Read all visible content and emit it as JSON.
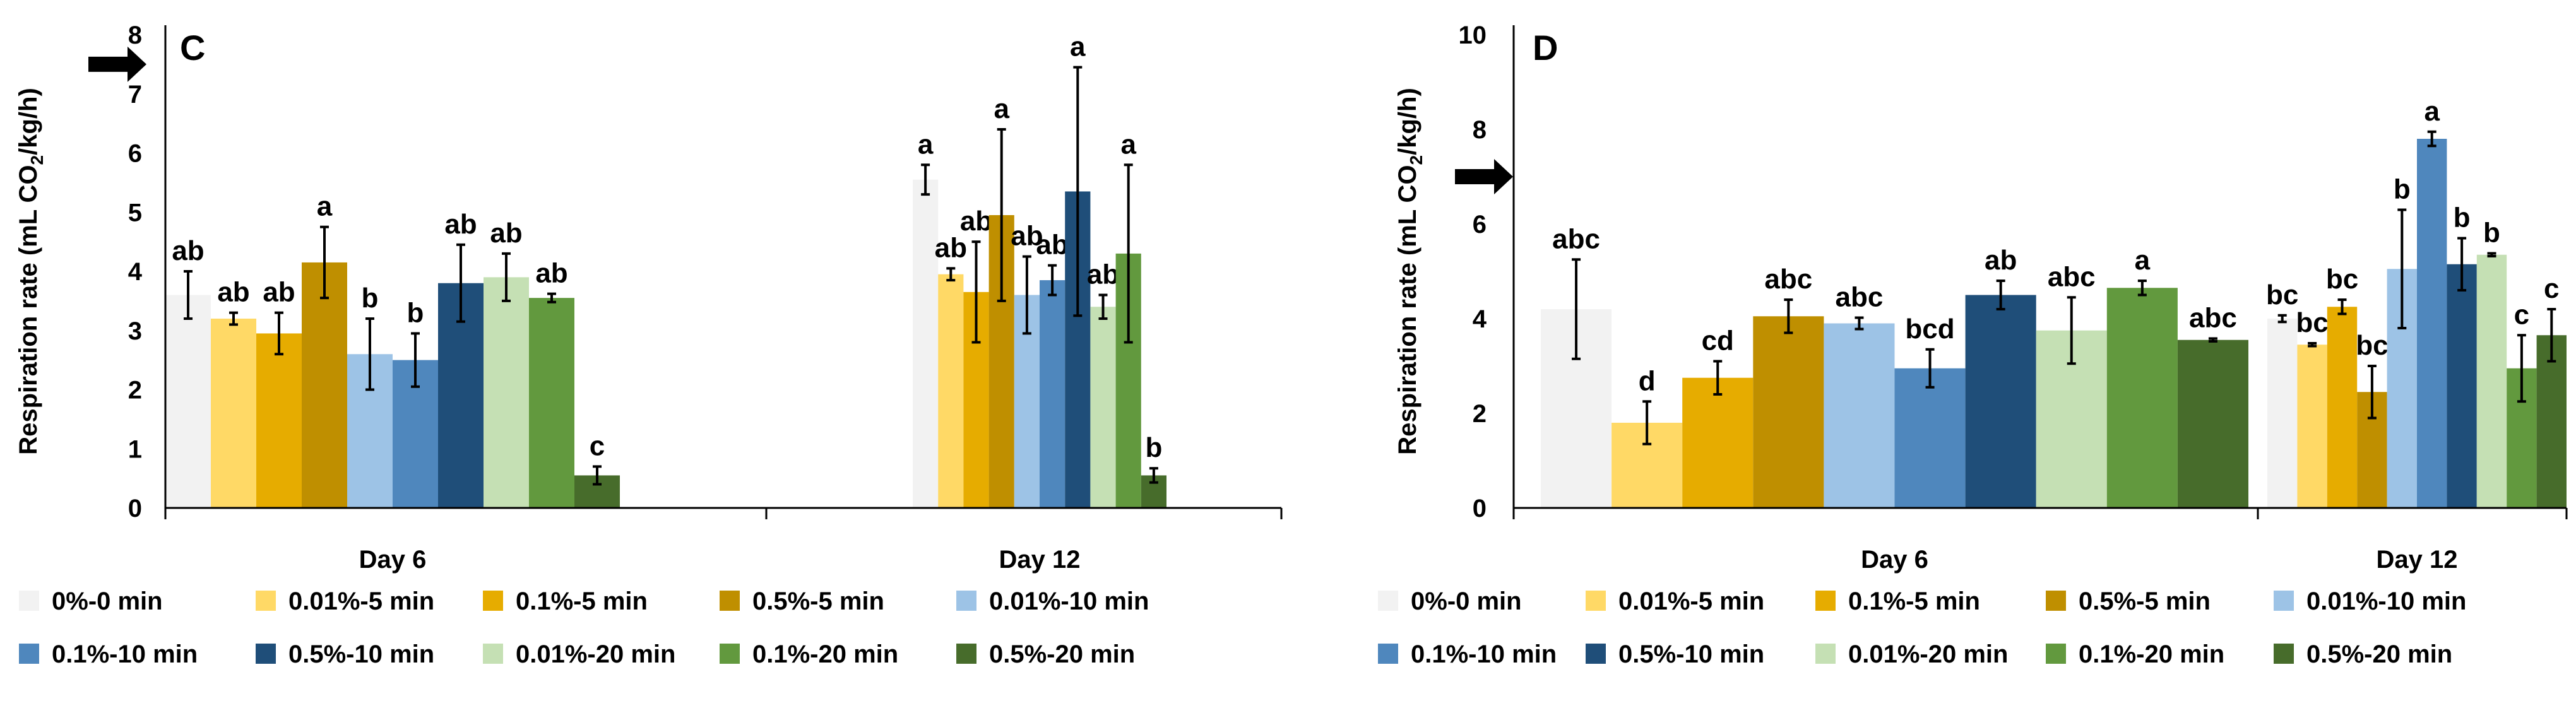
{
  "colors": {
    "0%-0 min": "#f2f2f2",
    "0.01%-5 min": "#ffd966",
    "0.1%-5 min": "#e6ac00",
    "0.5%-5 min": "#bf8f00",
    "0.01%-10 min": "#9dc3e6",
    "0.1%-10 min": "#4f87bd",
    "0.5%-10 min": "#1f4e79",
    "0.01%-20 min": "#c5e0b4",
    "0.1%-20 min": "#62993e",
    "0.5%-20 min": "#476c2b",
    "axis": "#000000",
    "errorbar": "#000000",
    "arrow": "#000000"
  },
  "chart_data": [
    {
      "type": "bar",
      "panel_label": "C",
      "ylabel": "Respiration rate (mL CO2/kg/h)",
      "ylabel_parts": [
        "Respiration rate (mL CO",
        "2",
        "/kg/h)"
      ],
      "ylim": [
        0,
        8
      ],
      "yticks": [
        0,
        1,
        2,
        3,
        4,
        5,
        6,
        7,
        8
      ],
      "grid": false,
      "legend_position": "bottom",
      "reference_arrow_y": 7.5,
      "categories": [
        "Day 6",
        "Day 12"
      ],
      "series": [
        {
          "name": "0%-0 min",
          "values": [
            3.6,
            5.55
          ],
          "errors": [
            0.4,
            0.25
          ],
          "letters": [
            "ab",
            "a"
          ]
        },
        {
          "name": "0.01%-5 min",
          "values": [
            3.2,
            3.95
          ],
          "errors": [
            0.1,
            0.1
          ],
          "letters": [
            "ab",
            "ab"
          ]
        },
        {
          "name": "0.1%-5 min",
          "values": [
            2.95,
            3.65
          ],
          "errors": [
            0.35,
            0.85
          ],
          "letters": [
            "ab",
            "ab"
          ]
        },
        {
          "name": "0.5%-5 min",
          "values": [
            4.15,
            4.95
          ],
          "errors": [
            0.6,
            1.45
          ],
          "letters": [
            "a",
            "a"
          ]
        },
        {
          "name": "0.01%-10 min",
          "values": [
            2.6,
            3.6
          ],
          "errors": [
            0.6,
            0.65
          ],
          "letters": [
            "b",
            "ab"
          ]
        },
        {
          "name": "0.1%-10 min",
          "values": [
            2.5,
            3.85
          ],
          "errors": [
            0.45,
            0.25
          ],
          "letters": [
            "b",
            "ab"
          ]
        },
        {
          "name": "0.5%-10 min",
          "values": [
            3.8,
            5.35
          ],
          "errors": [
            0.65,
            2.1
          ],
          "letters": [
            "ab",
            "a"
          ]
        },
        {
          "name": "0.01%-20 min",
          "values": [
            3.9,
            3.4
          ],
          "errors": [
            0.4,
            0.2
          ],
          "letters": [
            "ab",
            "ab"
          ]
        },
        {
          "name": "0.1%-20 min",
          "values": [
            3.55,
            4.3
          ],
          "errors": [
            0.07,
            1.5
          ],
          "letters": [
            "ab",
            "a"
          ]
        },
        {
          "name": "0.5%-20 min",
          "values": [
            0.55,
            0.55
          ],
          "errors": [
            0.15,
            0.12
          ],
          "letters": [
            "c",
            "b"
          ]
        }
      ]
    },
    {
      "type": "bar",
      "panel_label": "D",
      "ylabel": "Respiration rate (mL CO2/kg/h)",
      "ylabel_parts": [
        "Respiration rate (mL CO",
        "2",
        "/kg/h)"
      ],
      "ylim": [
        0,
        10
      ],
      "yticks": [
        0,
        2,
        4,
        6,
        8,
        10
      ],
      "grid": false,
      "legend_position": "bottom",
      "reference_arrow_y": 7.0,
      "categories": [
        "Day 6",
        "Day 12"
      ],
      "series": [
        {
          "name": "0%-0 min",
          "values": [
            4.2,
            4.0
          ],
          "errors": [
            1.05,
            0.07
          ],
          "letters": [
            "abc",
            "bc"
          ]
        },
        {
          "name": "0.01%-5 min",
          "values": [
            1.8,
            3.45
          ],
          "errors": [
            0.45,
            0.03
          ],
          "letters": [
            "d",
            "bc"
          ]
        },
        {
          "name": "0.1%-5 min",
          "values": [
            2.75,
            4.25
          ],
          "errors": [
            0.35,
            0.15
          ],
          "letters": [
            "cd",
            "bc"
          ]
        },
        {
          "name": "0.5%-5 min",
          "values": [
            4.05,
            2.45
          ],
          "errors": [
            0.35,
            0.55
          ],
          "letters": [
            "abc",
            "bc"
          ]
        },
        {
          "name": "0.01%-10 min",
          "values": [
            3.9,
            5.05
          ],
          "errors": [
            0.12,
            1.25
          ],
          "letters": [
            "abc",
            "b"
          ]
        },
        {
          "name": "0.1%-10 min",
          "values": [
            2.95,
            7.8
          ],
          "errors": [
            0.4,
            0.15
          ],
          "letters": [
            "bcd",
            "a"
          ]
        },
        {
          "name": "0.5%-10 min",
          "values": [
            4.5,
            5.15
          ],
          "errors": [
            0.3,
            0.55
          ],
          "letters": [
            "ab",
            "b"
          ]
        },
        {
          "name": "0.01%-20 min",
          "values": [
            3.75,
            5.35
          ],
          "errors": [
            0.7,
            0.03
          ],
          "letters": [
            "abc",
            "b"
          ]
        },
        {
          "name": "0.1%-20 min",
          "values": [
            4.65,
            2.95
          ],
          "errors": [
            0.15,
            0.7
          ],
          "letters": [
            "a",
            "c"
          ]
        },
        {
          "name": "0.5%-20 min",
          "values": [
            3.55,
            3.65
          ],
          "errors": [
            0.03,
            0.55
          ],
          "letters": [
            "abc",
            "c"
          ]
        }
      ]
    }
  ]
}
